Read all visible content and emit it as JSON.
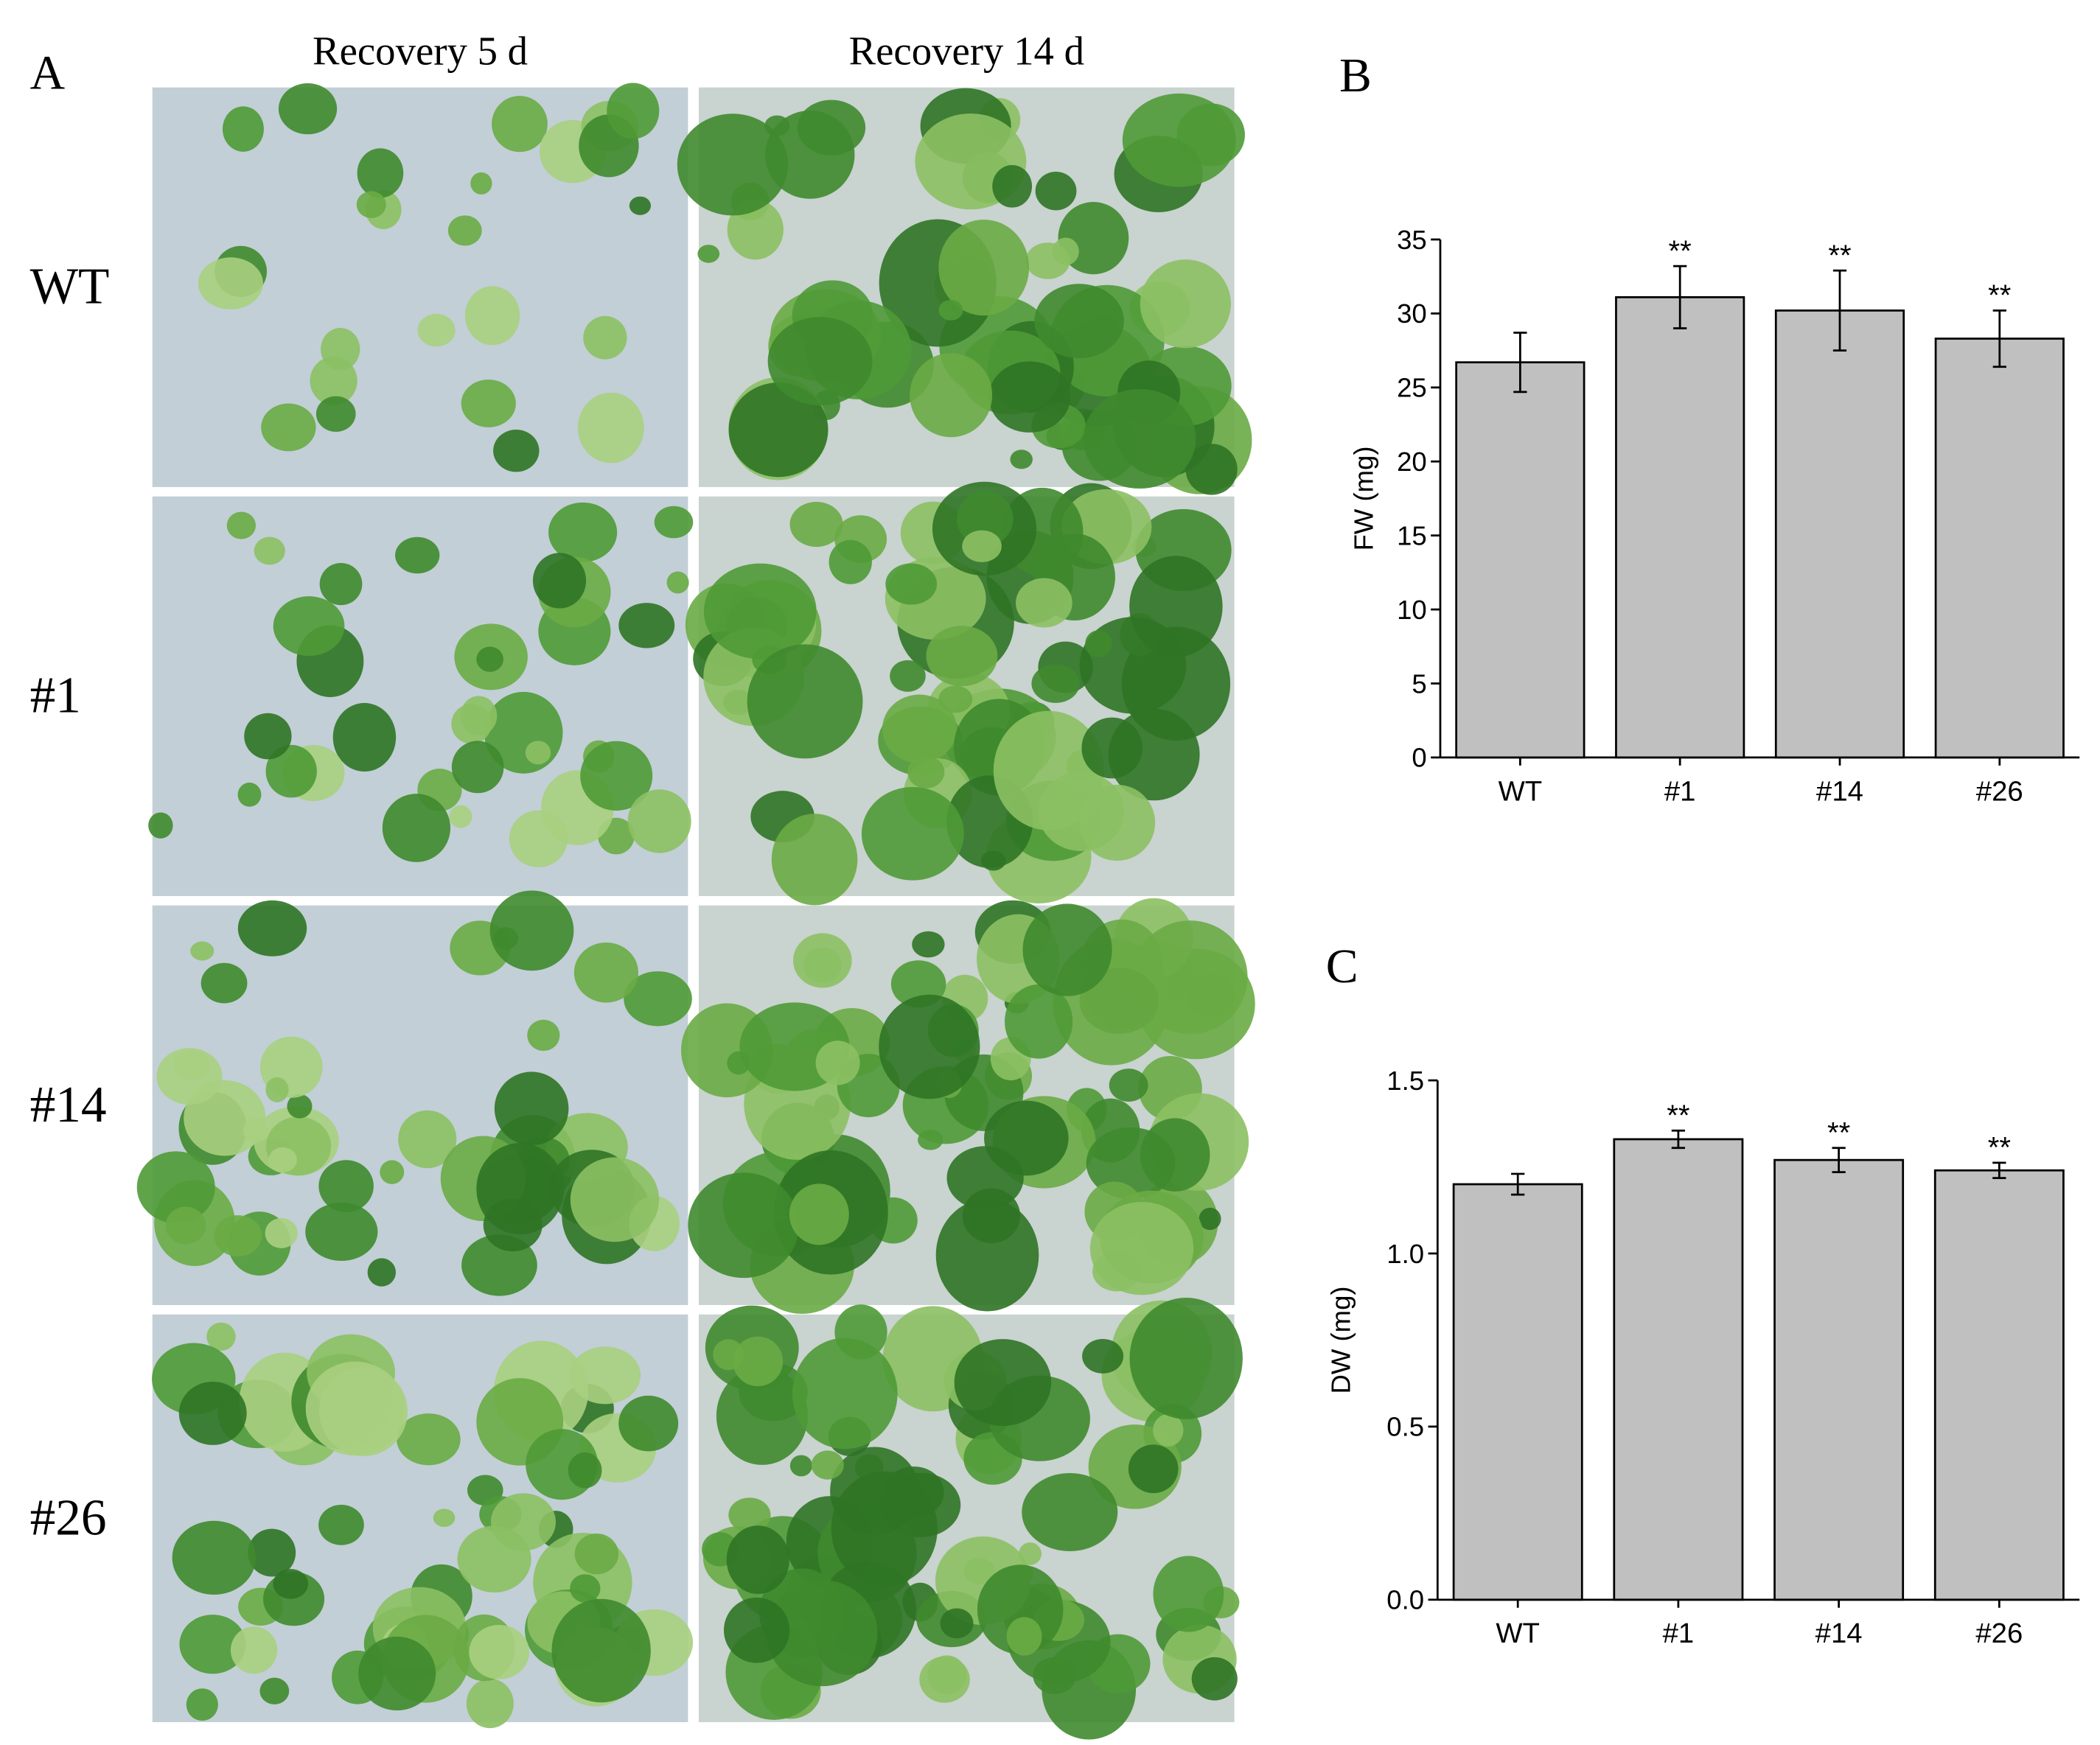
{
  "panel_a": {
    "label": "A",
    "columns": [
      "Recovery 5 d",
      "Recovery 14 d"
    ],
    "rows": [
      "WT",
      "#1",
      "#14",
      "#26"
    ]
  },
  "chart_data": [
    {
      "type": "bar",
      "panel_label": "B",
      "ylabel": "FW (mg)",
      "categories": [
        "WT",
        "#1",
        "#14",
        "#26"
      ],
      "values": [
        26.7,
        31.1,
        30.2,
        28.3
      ],
      "errors": [
        2.0,
        2.1,
        2.7,
        1.9
      ],
      "significance": [
        null,
        "**",
        "**",
        "**"
      ],
      "color": "#c0c0c0",
      "ylim": [
        0,
        35
      ],
      "yticks": [
        0,
        5,
        10,
        15,
        20,
        25,
        30,
        35
      ]
    },
    {
      "type": "bar",
      "panel_label": "C",
      "ylabel": "DW (mg)",
      "categories": [
        "WT",
        "#1",
        "#14",
        "#26"
      ],
      "values": [
        1.2,
        1.33,
        1.27,
        1.24
      ],
      "errors": [
        0.03,
        0.025,
        0.035,
        0.022
      ],
      "significance": [
        null,
        "**",
        "**",
        "**"
      ],
      "color": "#c0c0c0",
      "ylim": [
        0,
        1.5
      ],
      "yticks": [
        {
          "value": 0,
          "label": "0.0"
        },
        0.5,
        {
          "value": 1,
          "label": "1.0"
        },
        1.5
      ]
    }
  ]
}
